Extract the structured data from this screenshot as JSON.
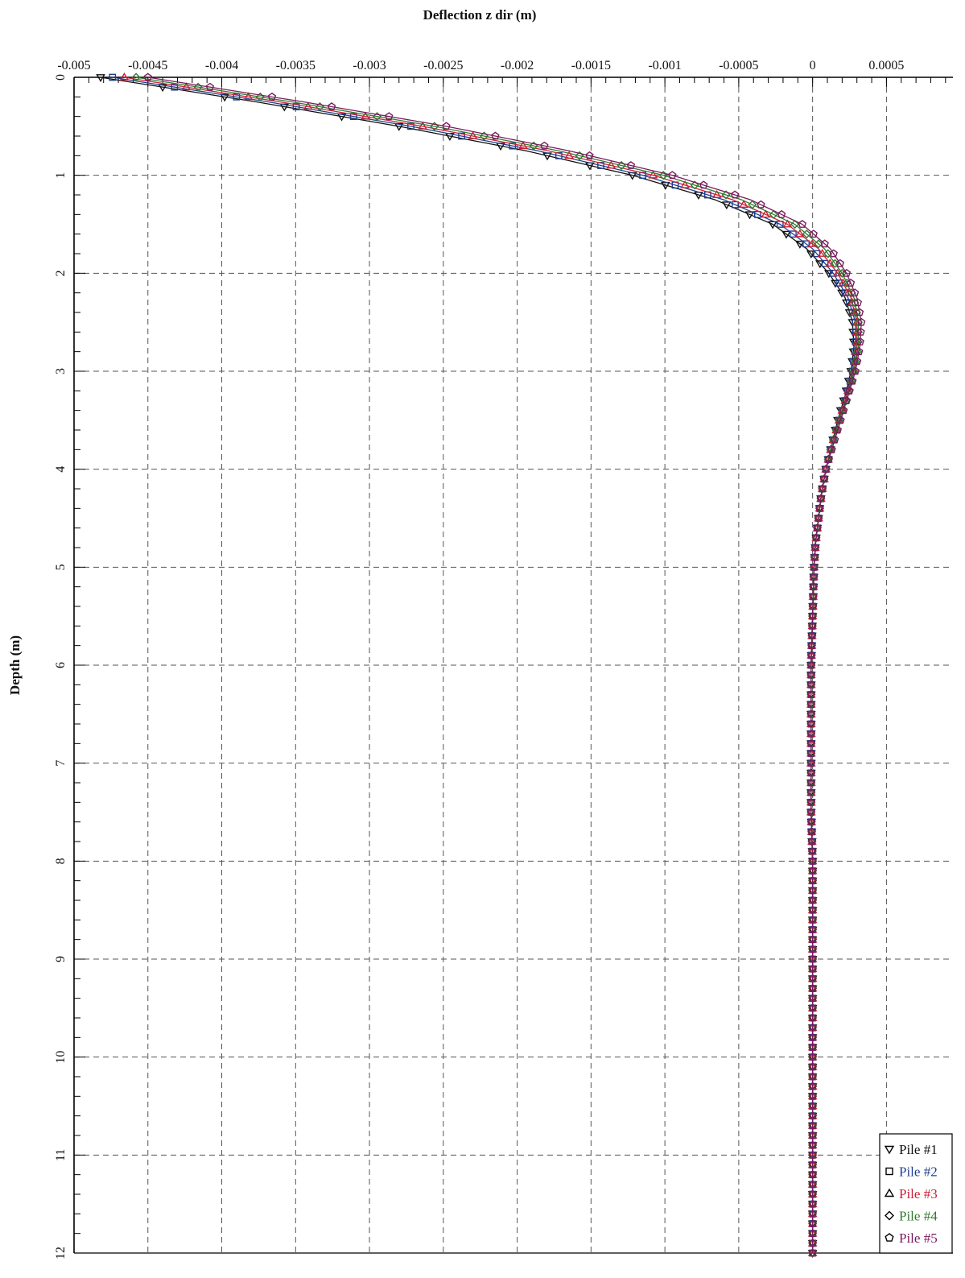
{
  "chart_data": {
    "type": "line",
    "title": "",
    "xlabel": "Deflection z dir (m)",
    "ylabel": "Depth (m)",
    "xlim": [
      -0.005,
      0.00095
    ],
    "ylim": [
      0,
      12
    ],
    "x_axis_position": "top",
    "y_inverted": true,
    "grid": true,
    "legend_position": "bottom-right",
    "x_ticks": [
      -0.005,
      -0.0045,
      -0.004,
      -0.0035,
      -0.003,
      -0.0025,
      -0.002,
      -0.0015,
      -0.001,
      -0.0005,
      0,
      0.0005
    ],
    "x_tick_labels": [
      "-0.005",
      "-0.0045",
      "-0.004",
      "-0.0035",
      "-0.003",
      "-0.0025",
      "-0.002",
      "-0.0015",
      "-0.001",
      "-0.0005",
      "0",
      "0.0005"
    ],
    "y_ticks": [
      0,
      1,
      2,
      3,
      4,
      5,
      6,
      7,
      8,
      9,
      10,
      11,
      12
    ],
    "y_tick_labels": [
      "0",
      "1",
      "2",
      "3",
      "4",
      "5",
      "6",
      "7",
      "8",
      "9",
      "10",
      "11",
      "12"
    ],
    "depth_points": [
      0,
      0.25,
      0.5,
      0.75,
      1.0,
      1.25,
      1.5,
      1.75,
      2.0,
      2.25,
      2.5,
      2.75,
      3.0,
      3.25,
      3.5,
      3.75,
      4.0,
      4.25,
      4.5,
      4.75,
      5.0,
      5.5,
      6.0,
      6.5,
      7.0,
      7.5,
      8.0,
      8.5,
      9.0,
      9.5,
      10.0,
      10.5,
      11.0,
      11.5,
      12.0
    ],
    "series": [
      {
        "name": "Pile #1",
        "color": "#111111",
        "marker": "triangle-down",
        "values": [
          -0.00482,
          -0.00377,
          -0.0028,
          -0.00194,
          -0.00122,
          -0.00066,
          -0.00027,
          -4e-05,
          0.00011,
          0.00022,
          0.00027,
          0.00028,
          0.00026,
          0.00022,
          0.00017,
          0.00013,
          9e-05,
          6e-05,
          4e-05,
          2e-05,
          1e-05,
          0.0,
          -1e-05,
          -1e-05,
          -1e-05,
          -1e-05,
          0,
          0,
          0,
          0,
          0,
          0,
          0,
          0,
          0
        ]
      },
      {
        "name": "Pile #2",
        "color": "#1f3f8f",
        "marker": "square",
        "values": [
          -0.00474,
          -0.00369,
          -0.00272,
          -0.00186,
          -0.00115,
          -0.0006,
          -0.00022,
          0.0,
          0.00014,
          0.00024,
          0.00029,
          0.00029,
          0.00027,
          0.00023,
          0.00018,
          0.00013,
          9e-05,
          6e-05,
          4e-05,
          2e-05,
          1e-05,
          0.0,
          -1e-05,
          -1e-05,
          -1e-05,
          -1e-05,
          0,
          0,
          0,
          0,
          0,
          0,
          0,
          0,
          0
        ]
      },
      {
        "name": "Pile #3",
        "color": "#cc1f36",
        "marker": "triangle-up",
        "values": [
          -0.00466,
          -0.00361,
          -0.00264,
          -0.00179,
          -0.00108,
          -0.00054,
          -0.00017,
          4e-05,
          0.00017,
          0.00026,
          0.0003,
          0.0003,
          0.00028,
          0.00023,
          0.00018,
          0.00013,
          9e-05,
          6e-05,
          4e-05,
          2e-05,
          1e-05,
          0.0,
          -1e-05,
          -1e-05,
          -1e-05,
          -1e-05,
          0,
          0,
          0,
          0,
          0,
          0,
          0,
          0,
          0
        ]
      },
      {
        "name": "Pile #4",
        "color": "#2e7a2e",
        "marker": "diamond",
        "values": [
          -0.00458,
          -0.00353,
          -0.00256,
          -0.00172,
          -0.00101,
          -0.00048,
          -0.00012,
          8e-05,
          0.0002,
          0.00028,
          0.00031,
          0.00031,
          0.00028,
          0.00024,
          0.00018,
          0.00013,
          9e-05,
          6e-05,
          4e-05,
          2e-05,
          1e-05,
          0.0,
          -1e-05,
          -1e-05,
          -1e-05,
          -1e-05,
          0,
          0,
          0,
          0,
          0,
          0,
          0,
          0,
          0
        ]
      },
      {
        "name": "Pile #5",
        "color": "#7a1a5e",
        "marker": "pentagon",
        "values": [
          -0.0045,
          -0.00345,
          -0.00248,
          -0.00165,
          -0.00095,
          -0.00042,
          -7e-05,
          0.00012,
          0.00023,
          0.0003,
          0.00033,
          0.00032,
          0.00029,
          0.00024,
          0.00019,
          0.00014,
          9e-05,
          6e-05,
          4e-05,
          2e-05,
          1e-05,
          0.0,
          -1e-05,
          -1e-05,
          -1e-05,
          -1e-05,
          0,
          0,
          0,
          0,
          0,
          0,
          0,
          0,
          0
        ]
      }
    ]
  }
}
